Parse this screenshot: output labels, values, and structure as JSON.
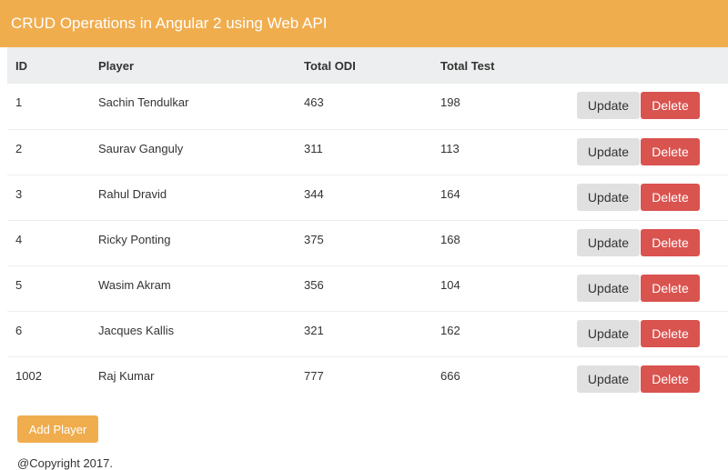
{
  "header": {
    "title": "CRUD Operations in Angular 2 using Web API"
  },
  "table": {
    "columns": [
      "ID",
      "Player",
      "Total ODI",
      "Total Test",
      ""
    ],
    "rows": [
      {
        "id": "1",
        "player": "Sachin Tendulkar",
        "odi": "463",
        "test": "198"
      },
      {
        "id": "2",
        "player": "Saurav Ganguly",
        "odi": "311",
        "test": "113"
      },
      {
        "id": "3",
        "player": "Rahul Dravid",
        "odi": "344",
        "test": "164"
      },
      {
        "id": "4",
        "player": "Ricky Ponting",
        "odi": "375",
        "test": "168"
      },
      {
        "id": "5",
        "player": "Wasim Akram",
        "odi": "356",
        "test": "104"
      },
      {
        "id": "6",
        "player": "Jacques Kallis",
        "odi": "321",
        "test": "162"
      },
      {
        "id": "1002",
        "player": "Raj Kumar",
        "odi": "777",
        "test": "666"
      }
    ],
    "update_label": "Update",
    "delete_label": "Delete"
  },
  "add_button": {
    "label": "Add Player"
  },
  "footer": {
    "text": "@Copyright 2017."
  },
  "colors": {
    "accent": "#f0ad4e",
    "danger": "#d9534f",
    "header_row": "#eceeef"
  }
}
